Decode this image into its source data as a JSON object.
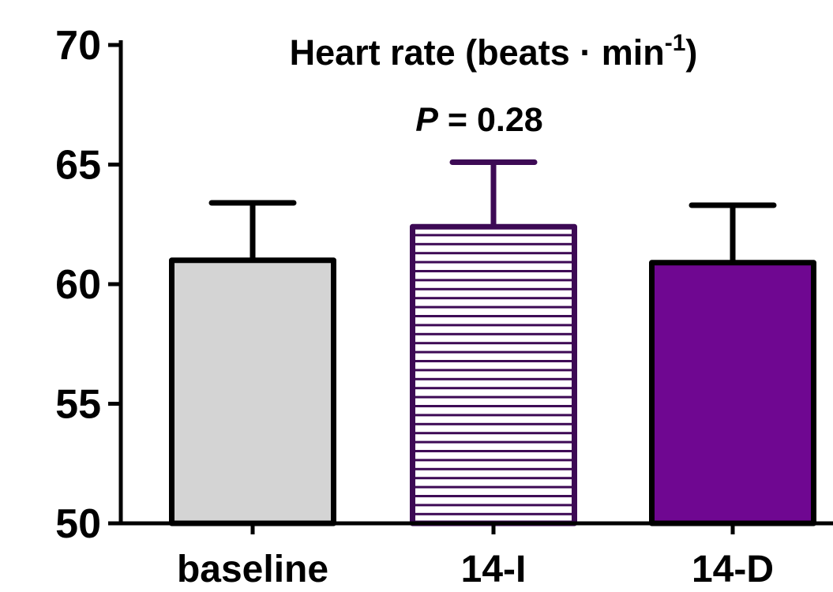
{
  "chart_data": {
    "type": "bar",
    "title": "Heart rate (beats · min",
    "title_superscript": "-1",
    "title_close": ")",
    "annotation": {
      "italic": "P",
      "rest": " = 0.28"
    },
    "categories": [
      "baseline",
      "14-I",
      "14-D"
    ],
    "values": [
      61.0,
      62.4,
      60.9
    ],
    "error": [
      2.4,
      2.7,
      2.4
    ],
    "ylim": [
      50,
      70
    ],
    "yticks": [
      50,
      55,
      60,
      65,
      70
    ],
    "ytick_labels": [
      "50",
      "55",
      "60",
      "65",
      "70"
    ],
    "xlabel": "",
    "ylabel": "",
    "grid": false,
    "bar_styles": [
      {
        "fill": "#d4d4d4",
        "stroke": "#000000",
        "pattern": "none"
      },
      {
        "fill": "#ffffff",
        "stroke": "#3d0a55",
        "pattern": "horizontal-lines"
      },
      {
        "fill": "#6f0791",
        "stroke": "#000000",
        "pattern": "none"
      }
    ]
  }
}
